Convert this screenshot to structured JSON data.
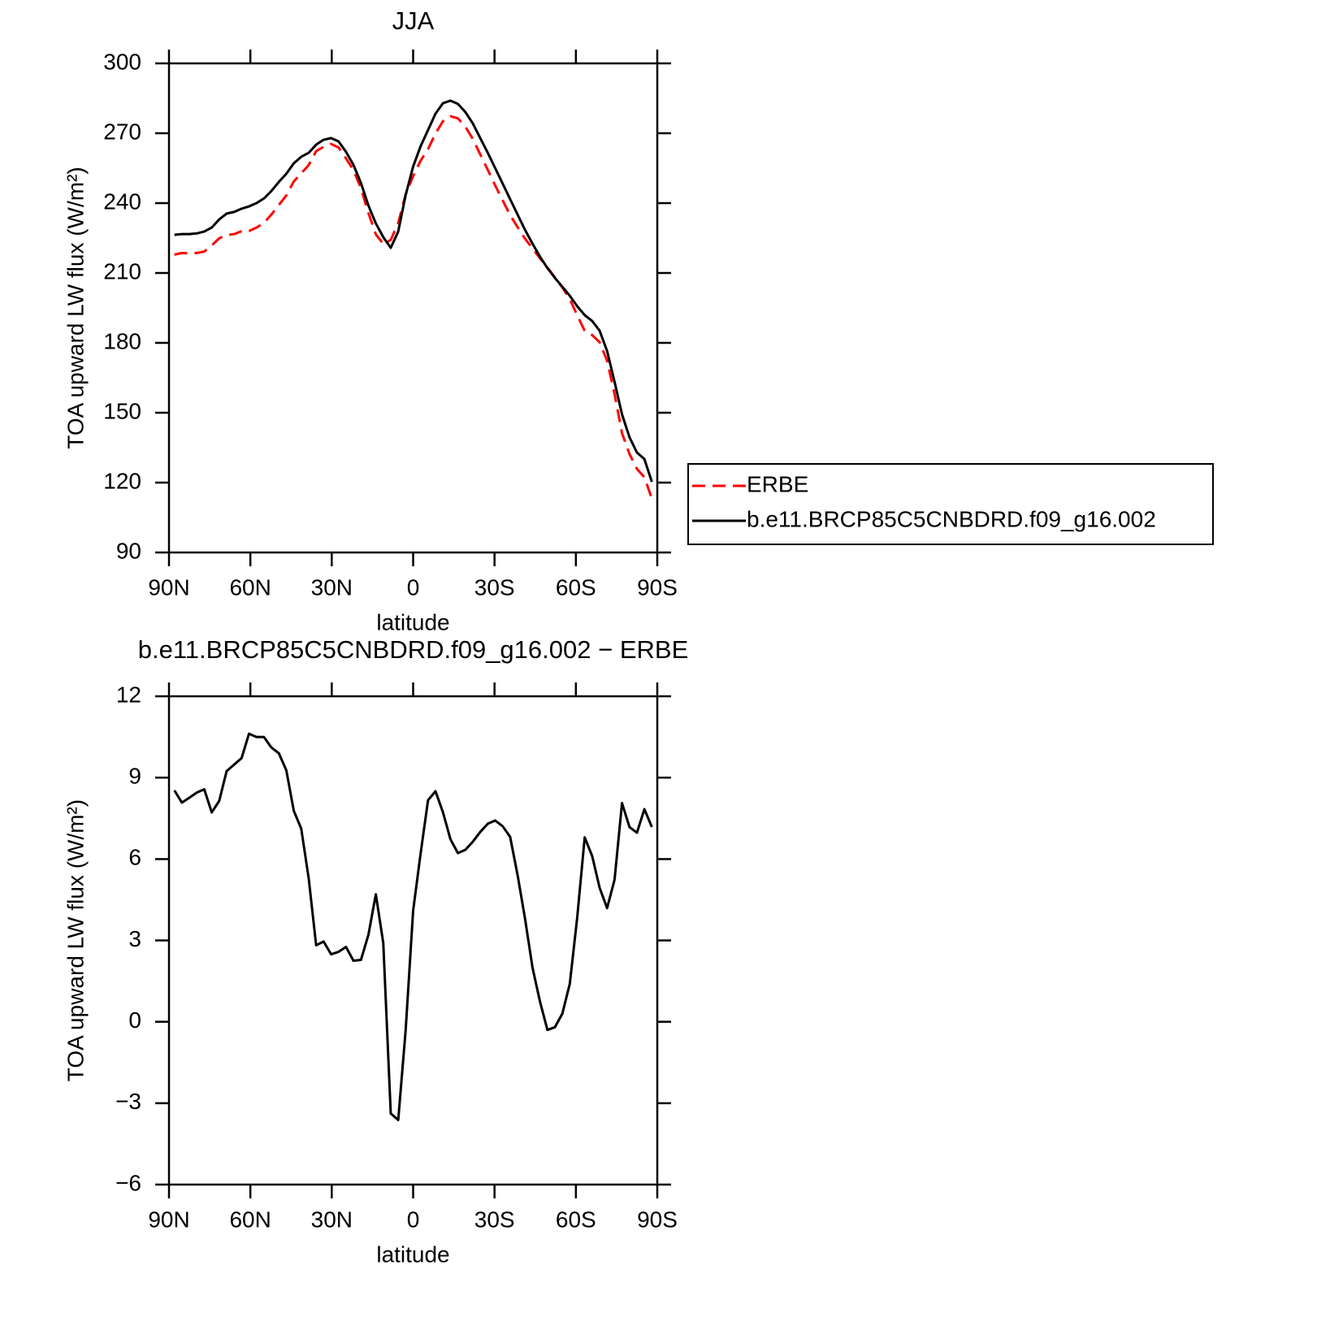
{
  "chart_data": [
    {
      "type": "line",
      "title": "JJA",
      "xlabel": "latitude",
      "ylabel": "TOA upward LW flux (W/m²)",
      "x": [
        88,
        85.25,
        82.5,
        79.75,
        77,
        74.25,
        71.5,
        68.75,
        66,
        63.25,
        60.5,
        57.75,
        55,
        52.25,
        49.5,
        46.75,
        44,
        41.25,
        38.5,
        35.75,
        33,
        30.25,
        27.5,
        24.75,
        22,
        19.25,
        16.5,
        13.75,
        11,
        8.25,
        5.5,
        2.75,
        0,
        -2.75,
        -5.5,
        -8.25,
        -11,
        -13.75,
        -16.5,
        -19.25,
        -22,
        -24.75,
        -27.5,
        -30.25,
        -33,
        -35.75,
        -38.5,
        -41.25,
        -44,
        -46.75,
        -49.5,
        -52.25,
        -55,
        -57.75,
        -60.5,
        -63.25,
        -66,
        -68.75,
        -71.5,
        -74.25,
        -77,
        -79.75,
        -82.5,
        -85.25,
        -88
      ],
      "series": [
        {
          "name": "ERBE",
          "color": "#ff0000",
          "line_style": "dashed",
          "values": [
            217.9,
            218.6,
            218.4,
            218.6,
            219.2,
            221.8,
            224.9,
            226.3,
            226.7,
            227.9,
            228.0,
            229.5,
            231.5,
            235.1,
            239.2,
            243.3,
            249.3,
            252.8,
            256.3,
            262.3,
            264.2,
            265.4,
            263.9,
            259.2,
            254.2,
            246.4,
            235.8,
            226.6,
            222.5,
            224.2,
            231.4,
            243.8,
            251.6,
            258.2,
            263.2,
            269.9,
            275.2,
            277.3,
            276.4,
            272.8,
            267.6,
            260.9,
            254.3,
            247.6,
            241.2,
            234.9,
            229.7,
            224.7,
            220.6,
            216.3,
            212.4,
            208.1,
            203.8,
            198.8,
            191.8,
            185.1,
            183.3,
            180.3,
            172.3,
            158.1,
            141.2,
            132.3,
            125.9,
            122.3,
            113.1
          ]
        },
        {
          "name": "b.e11.BRCP85C5CNBDRD.f09_g16.002",
          "color": "#000000",
          "line_style": "solid",
          "values": [
            226.4,
            226.7,
            226.7,
            227.0,
            227.8,
            229.5,
            233.0,
            235.5,
            236.2,
            237.6,
            238.6,
            240.0,
            242.0,
            245.2,
            249.1,
            252.6,
            257.1,
            259.9,
            261.6,
            265.1,
            267.2,
            267.9,
            266.5,
            262.0,
            256.4,
            248.7,
            239.0,
            231.3,
            225.4,
            220.8,
            227.8,
            243.5,
            255.7,
            264.4,
            271.4,
            278.4,
            282.9,
            284.0,
            282.6,
            279.1,
            274.2,
            267.9,
            261.6,
            255.0,
            248.4,
            241.7,
            235.1,
            228.5,
            222.6,
            217.0,
            212.1,
            207.9,
            204.1,
            200.2,
            195.7,
            191.9,
            189.4,
            185.2,
            176.5,
            163.3,
            149.3,
            139.5,
            132.9,
            130.1,
            120.3
          ]
        }
      ],
      "xlim": [
        90,
        -90
      ],
      "xticks": [
        {
          "value": 90,
          "label": "90N"
        },
        {
          "value": 60,
          "label": "60N"
        },
        {
          "value": 30,
          "label": "30N"
        },
        0,
        {
          "value": -30,
          "label": "30S"
        },
        {
          "value": -60,
          "label": "60S"
        },
        {
          "value": -90,
          "label": "90S"
        }
      ],
      "ylim": [
        90,
        300
      ],
      "yticks": [
        90,
        120,
        150,
        180,
        210,
        240,
        270,
        300
      ],
      "legend": "right"
    },
    {
      "type": "line",
      "title": "b.e11.BRCP85C5CNBDRD.f09_g16.002 − ERBE",
      "xlabel": "latitude",
      "ylabel": "TOA upward LW flux (W/m²)",
      "x": [
        88,
        85.25,
        82.5,
        79.75,
        77,
        74.25,
        71.5,
        68.75,
        66,
        63.25,
        60.5,
        57.75,
        55,
        52.25,
        49.5,
        46.75,
        44,
        41.25,
        38.5,
        35.75,
        33,
        30.25,
        27.5,
        24.75,
        22,
        19.25,
        16.5,
        13.75,
        11,
        8.25,
        5.5,
        2.75,
        0,
        -2.75,
        -5.5,
        -8.25,
        -11,
        -13.75,
        -16.5,
        -19.25,
        -22,
        -24.75,
        -27.5,
        -30.25,
        -33,
        -35.75,
        -38.5,
        -41.25,
        -44,
        -46.75,
        -49.5,
        -52.25,
        -55,
        -57.75,
        -60.5,
        -63.25,
        -66,
        -68.75,
        -71.5,
        -74.25,
        -77,
        -79.75,
        -82.5,
        -85.25,
        -88
      ],
      "color": "#000000",
      "values": [
        8.53,
        8.08,
        8.26,
        8.45,
        8.57,
        7.72,
        8.14,
        9.24,
        9.48,
        9.72,
        10.62,
        10.5,
        10.5,
        10.11,
        9.9,
        9.27,
        7.78,
        7.12,
        5.29,
        2.82,
        2.96,
        2.49,
        2.58,
        2.76,
        2.25,
        2.28,
        3.2,
        4.7,
        2.9,
        -3.38,
        -3.62,
        -0.3,
        4.1,
        6.2,
        8.17,
        8.5,
        7.72,
        6.73,
        6.22,
        6.34,
        6.64,
        7.0,
        7.3,
        7.42,
        7.21,
        6.82,
        5.41,
        3.8,
        2.0,
        0.75,
        -0.3,
        -0.2,
        0.3,
        1.4,
        3.86,
        6.8,
        6.11,
        4.94,
        4.19,
        5.24,
        8.06,
        7.18,
        6.97,
        7.84,
        7.18
      ],
      "xlim": [
        90,
        -90
      ],
      "xticks": [
        {
          "value": 90,
          "label": "90N"
        },
        {
          "value": 60,
          "label": "60N"
        },
        {
          "value": 30,
          "label": "30N"
        },
        0,
        {
          "value": -30,
          "label": "30S"
        },
        {
          "value": -60,
          "label": "60S"
        },
        {
          "value": -90,
          "label": "90S"
        }
      ],
      "ylim": [
        -6,
        12
      ],
      "yticks": [
        {
          "value": -6,
          "label": "−6"
        },
        {
          "value": -3,
          "label": "−3"
        },
        0,
        3,
        6,
        9,
        12
      ]
    }
  ]
}
